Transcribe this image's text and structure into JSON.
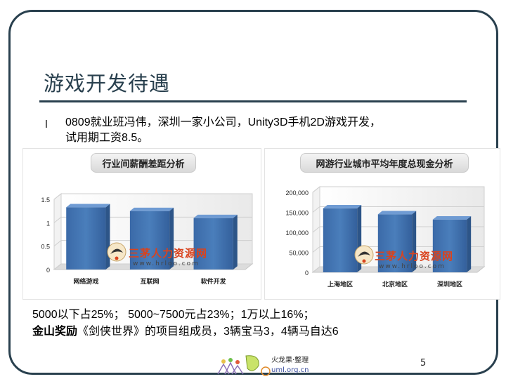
{
  "slide": {
    "title": "游戏开发待遇",
    "bullet_marker": "l",
    "bullet_lines": [
      "0809就业班冯伟，深圳一家小公司，Unity3D手机2D游戏开发，",
      "试用期工资8.5。"
    ],
    "line1": "5000以下占25%； 5000~7500元占23%；1万以上16%；",
    "line2_bold": "金山奖励",
    "line2_rest": "《剑侠世界》的项目组成员，3辆宝马3，4辆马自达6",
    "page_number": "5",
    "footer_name": "火龙果·整理",
    "footer_url": "uml.org.cn",
    "watermark_text": "三茅人力资源网",
    "watermark_url": "www.hrloo.com"
  },
  "chart_data": [
    {
      "type": "bar",
      "title": "行业间薪酬差距分析",
      "categories": [
        "网络游戏",
        "互联网",
        "软件开发"
      ],
      "values": [
        1.33,
        1.25,
        1.1
      ],
      "yticks": [
        "0",
        "0.5",
        "1",
        "1.5"
      ],
      "ylim": [
        0,
        1.5
      ],
      "bar_color": "#4a7ebb",
      "grid": true
    },
    {
      "type": "bar",
      "title": "网游行业城市平均年度总现金分析",
      "categories": [
        "上海地区",
        "北京地区",
        "深圳地区"
      ],
      "values": [
        160000,
        145000,
        132000
      ],
      "yticks": [
        "0",
        "50,000",
        "100,000",
        "150,000",
        "200,000"
      ],
      "ylim": [
        0,
        200000
      ],
      "bar_color": "#4a7ebb",
      "grid": true
    }
  ]
}
